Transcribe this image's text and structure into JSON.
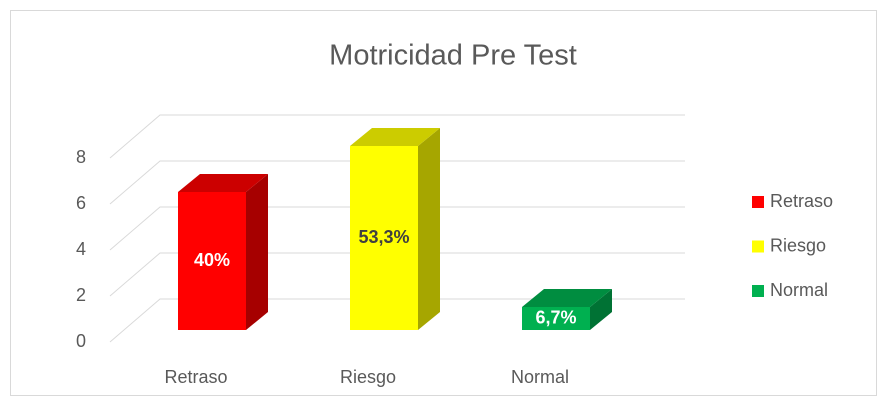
{
  "chart_data": {
    "type": "bar3d",
    "title": "Motricidad Pre Test",
    "categories": [
      "Retraso",
      "Riesgo",
      "Normal"
    ],
    "values": [
      6,
      8,
      1
    ],
    "percent_labels": [
      "40%",
      "53,3%",
      "6,7%"
    ],
    "colors": [
      "#ff0000",
      "#ffff00",
      "#00b050"
    ],
    "ylim": [
      0,
      8
    ],
    "yticks": [
      0,
      2,
      4,
      6,
      8
    ],
    "grid": true,
    "legend": "right"
  }
}
